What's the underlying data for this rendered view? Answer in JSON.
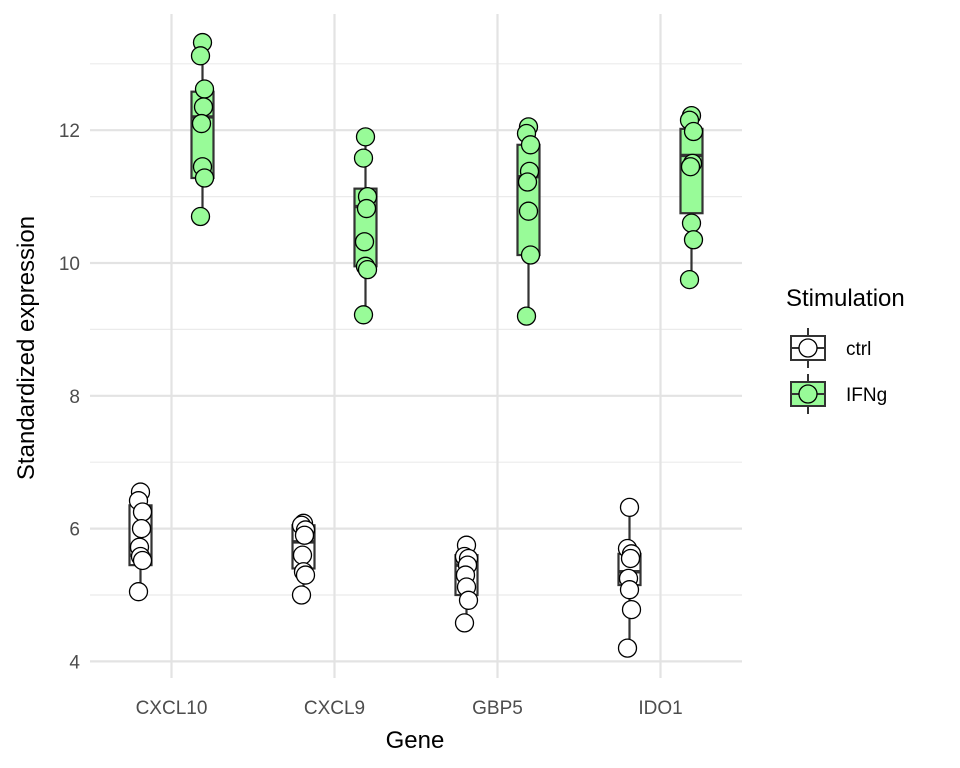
{
  "chart_data": {
    "type": "boxplot",
    "xlabel": "Gene",
    "ylabel": "Standardized expression",
    "categories": [
      "CXCL10",
      "CXCL9",
      "GBP5",
      "IDO1"
    ],
    "ylim": [
      3.75,
      13.75
    ],
    "yticks": [
      "4",
      "6",
      "8",
      "10",
      "12"
    ],
    "grid": true,
    "legend": {
      "title": "Stimulation",
      "position": "right",
      "entries": [
        "ctrl",
        "IFNg"
      ]
    },
    "series": [
      {
        "name": "ctrl",
        "fill": "#ffffff",
        "boxes": [
          {
            "q1": 5.45,
            "median": 5.6,
            "q3": 6.35,
            "whisker_low": 5.05,
            "whisker_high": 6.55
          },
          {
            "q1": 5.4,
            "median": 5.8,
            "q3": 6.05,
            "whisker_low": 5.0,
            "whisker_high": 6.1
          },
          {
            "q1": 5.0,
            "median": 5.45,
            "q3": 5.6,
            "whisker_low": 4.58,
            "whisker_high": 5.75
          },
          {
            "q1": 5.15,
            "median": 5.35,
            "q3": 5.62,
            "whisker_low": 4.2,
            "whisker_high": 6.32
          }
        ],
        "points": [
          [
            6.55,
            6.42,
            6.25,
            6.0,
            5.72,
            5.58,
            5.52,
            5.05
          ],
          [
            6.08,
            6.05,
            5.98,
            5.9,
            5.6,
            5.35,
            5.3,
            5.0
          ],
          [
            5.75,
            5.58,
            5.55,
            5.45,
            5.3,
            5.12,
            4.92,
            4.58
          ],
          [
            6.32,
            5.7,
            5.62,
            5.55,
            5.25,
            5.08,
            4.78,
            4.2
          ]
        ]
      },
      {
        "name": "IFNg",
        "fill": "#98fb98",
        "boxes": [
          {
            "q1": 11.28,
            "median": 12.2,
            "q3": 12.58,
            "whisker_low": 10.7,
            "whisker_high": 13.32
          },
          {
            "q1": 9.95,
            "median": 10.85,
            "q3": 11.12,
            "whisker_low": 9.22,
            "whisker_high": 11.9
          },
          {
            "q1": 10.12,
            "median": 11.3,
            "q3": 11.78,
            "whisker_low": 9.2,
            "whisker_high": 12.05
          },
          {
            "q1": 10.75,
            "median": 11.62,
            "q3": 12.02,
            "whisker_low": 9.75,
            "whisker_high": 12.22
          }
        ],
        "points": [
          [
            13.32,
            13.12,
            12.62,
            12.35,
            12.1,
            11.45,
            11.28,
            10.7
          ],
          [
            11.9,
            11.58,
            11.0,
            10.82,
            10.32,
            9.95,
            9.9,
            9.22
          ],
          [
            12.05,
            11.95,
            11.78,
            11.38,
            11.22,
            10.78,
            10.12,
            9.2
          ],
          [
            12.22,
            12.15,
            11.98,
            11.5,
            11.45,
            10.6,
            10.35,
            9.75
          ]
        ]
      }
    ]
  }
}
